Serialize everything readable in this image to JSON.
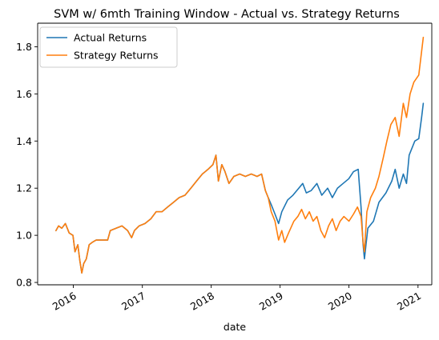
{
  "chart_data": {
    "type": "line",
    "title": "SVM w/ 6mth Training Window - Actual vs. Strategy Returns",
    "xlabel": "date",
    "ylabel": "",
    "xlim": [
      "2015-06-26",
      "2021-03-15"
    ],
    "ylim": [
      0.79,
      1.9
    ],
    "x_ticks": [
      {
        "date": "2016-01-01",
        "label": "2016"
      },
      {
        "date": "2017-01-01",
        "label": "2017"
      },
      {
        "date": "2018-01-01",
        "label": "2018"
      },
      {
        "date": "2019-01-01",
        "label": "2019"
      },
      {
        "date": "2020-01-01",
        "label": "2020"
      },
      {
        "date": "2021-01-01",
        "label": "2021"
      }
    ],
    "y_ticks": [
      {
        "value": 0.8,
        "label": "0.8"
      },
      {
        "value": 1.0,
        "label": "1.0"
      },
      {
        "value": 1.2,
        "label": "1.2"
      },
      {
        "value": 1.4,
        "label": "1.4"
      },
      {
        "value": 1.6,
        "label": "1.6"
      },
      {
        "value": 1.8,
        "label": "1.8"
      }
    ],
    "grid": false,
    "legend_position": "upper-left",
    "series": [
      {
        "name": "Actual Returns",
        "color": "#1f77b4",
        "points": [
          [
            "2015-10-01",
            1.02
          ],
          [
            "2015-10-15",
            1.04
          ],
          [
            "2015-11-01",
            1.03
          ],
          [
            "2015-11-20",
            1.05
          ],
          [
            "2015-12-10",
            1.01
          ],
          [
            "2015-12-30",
            1.0
          ],
          [
            "2016-01-10",
            0.93
          ],
          [
            "2016-01-25",
            0.96
          ],
          [
            "2016-02-05",
            0.89
          ],
          [
            "2016-02-15",
            0.84
          ],
          [
            "2016-02-25",
            0.88
          ],
          [
            "2016-03-10",
            0.9
          ],
          [
            "2016-03-25",
            0.96
          ],
          [
            "2016-04-10",
            0.97
          ],
          [
            "2016-05-01",
            0.98
          ],
          [
            "2016-06-01",
            0.98
          ],
          [
            "2016-07-01",
            0.98
          ],
          [
            "2016-07-15",
            1.02
          ],
          [
            "2016-08-15",
            1.03
          ],
          [
            "2016-09-15",
            1.04
          ],
          [
            "2016-10-15",
            1.02
          ],
          [
            "2016-11-05",
            0.99
          ],
          [
            "2016-11-20",
            1.02
          ],
          [
            "2016-12-15",
            1.04
          ],
          [
            "2017-01-15",
            1.05
          ],
          [
            "2017-02-15",
            1.07
          ],
          [
            "2017-03-15",
            1.1
          ],
          [
            "2017-04-15",
            1.1
          ],
          [
            "2017-05-15",
            1.12
          ],
          [
            "2017-06-15",
            1.14
          ],
          [
            "2017-07-15",
            1.16
          ],
          [
            "2017-08-15",
            1.17
          ],
          [
            "2017-09-15",
            1.2
          ],
          [
            "2017-10-15",
            1.23
          ],
          [
            "2017-11-15",
            1.26
          ],
          [
            "2017-12-15",
            1.28
          ],
          [
            "2018-01-10",
            1.3
          ],
          [
            "2018-01-26",
            1.34
          ],
          [
            "2018-02-08",
            1.23
          ],
          [
            "2018-02-26",
            1.3
          ],
          [
            "2018-03-15",
            1.27
          ],
          [
            "2018-04-05",
            1.22
          ],
          [
            "2018-05-01",
            1.25
          ],
          [
            "2018-06-01",
            1.26
          ],
          [
            "2018-07-01",
            1.25
          ],
          [
            "2018-08-01",
            1.26
          ],
          [
            "2018-09-01",
            1.25
          ],
          [
            "2018-09-25",
            1.26
          ],
          [
            "2018-10-15",
            1.19
          ],
          [
            "2018-10-30",
            1.16
          ],
          [
            "2018-11-15",
            1.13
          ],
          [
            "2018-12-05",
            1.09
          ],
          [
            "2018-12-24",
            1.05
          ],
          [
            "2019-01-10",
            1.1
          ],
          [
            "2019-02-10",
            1.15
          ],
          [
            "2019-03-10",
            1.17
          ],
          [
            "2019-04-10",
            1.2
          ],
          [
            "2019-05-01",
            1.22
          ],
          [
            "2019-05-20",
            1.18
          ],
          [
            "2019-06-15",
            1.19
          ],
          [
            "2019-07-15",
            1.22
          ],
          [
            "2019-08-10",
            1.17
          ],
          [
            "2019-09-10",
            1.2
          ],
          [
            "2019-10-05",
            1.16
          ],
          [
            "2019-11-01",
            1.2
          ],
          [
            "2019-12-01",
            1.22
          ],
          [
            "2019-12-31",
            1.24
          ],
          [
            "2020-01-25",
            1.27
          ],
          [
            "2020-02-19",
            1.28
          ],
          [
            "2020-03-05",
            1.12
          ],
          [
            "2020-03-16",
            0.96
          ],
          [
            "2020-03-23",
            0.9
          ],
          [
            "2020-04-10",
            1.03
          ],
          [
            "2020-05-10",
            1.06
          ],
          [
            "2020-06-08",
            1.14
          ],
          [
            "2020-07-15",
            1.18
          ],
          [
            "2020-08-15",
            1.23
          ],
          [
            "2020-09-02",
            1.28
          ],
          [
            "2020-09-23",
            1.2
          ],
          [
            "2020-10-15",
            1.26
          ],
          [
            "2020-11-01",
            1.22
          ],
          [
            "2020-11-15",
            1.34
          ],
          [
            "2020-12-15",
            1.4
          ],
          [
            "2021-01-05",
            1.41
          ],
          [
            "2021-01-20",
            1.5
          ],
          [
            "2021-01-29",
            1.56
          ]
        ]
      },
      {
        "name": "Strategy Returns",
        "color": "#ff7f0e",
        "points": [
          [
            "2015-10-01",
            1.02
          ],
          [
            "2015-10-15",
            1.04
          ],
          [
            "2015-11-01",
            1.03
          ],
          [
            "2015-11-20",
            1.05
          ],
          [
            "2015-12-10",
            1.01
          ],
          [
            "2015-12-30",
            1.0
          ],
          [
            "2016-01-10",
            0.93
          ],
          [
            "2016-01-25",
            0.96
          ],
          [
            "2016-02-05",
            0.89
          ],
          [
            "2016-02-15",
            0.84
          ],
          [
            "2016-02-25",
            0.88
          ],
          [
            "2016-03-10",
            0.9
          ],
          [
            "2016-03-25",
            0.96
          ],
          [
            "2016-04-10",
            0.97
          ],
          [
            "2016-05-01",
            0.98
          ],
          [
            "2016-06-01",
            0.98
          ],
          [
            "2016-07-01",
            0.98
          ],
          [
            "2016-07-15",
            1.02
          ],
          [
            "2016-08-15",
            1.03
          ],
          [
            "2016-09-15",
            1.04
          ],
          [
            "2016-10-15",
            1.02
          ],
          [
            "2016-11-05",
            0.99
          ],
          [
            "2016-11-20",
            1.02
          ],
          [
            "2016-12-15",
            1.04
          ],
          [
            "2017-01-15",
            1.05
          ],
          [
            "2017-02-15",
            1.07
          ],
          [
            "2017-03-15",
            1.1
          ],
          [
            "2017-04-15",
            1.1
          ],
          [
            "2017-05-15",
            1.12
          ],
          [
            "2017-06-15",
            1.14
          ],
          [
            "2017-07-15",
            1.16
          ],
          [
            "2017-08-15",
            1.17
          ],
          [
            "2017-09-15",
            1.2
          ],
          [
            "2017-10-15",
            1.23
          ],
          [
            "2017-11-15",
            1.26
          ],
          [
            "2017-12-15",
            1.28
          ],
          [
            "2018-01-10",
            1.3
          ],
          [
            "2018-01-26",
            1.34
          ],
          [
            "2018-02-08",
            1.23
          ],
          [
            "2018-02-26",
            1.3
          ],
          [
            "2018-03-15",
            1.27
          ],
          [
            "2018-04-05",
            1.22
          ],
          [
            "2018-05-01",
            1.25
          ],
          [
            "2018-06-01",
            1.26
          ],
          [
            "2018-07-01",
            1.25
          ],
          [
            "2018-08-01",
            1.26
          ],
          [
            "2018-09-01",
            1.25
          ],
          [
            "2018-09-25",
            1.26
          ],
          [
            "2018-10-15",
            1.19
          ],
          [
            "2018-10-30",
            1.16
          ],
          [
            "2018-11-15",
            1.1
          ],
          [
            "2018-12-05",
            1.06
          ],
          [
            "2018-12-24",
            0.98
          ],
          [
            "2019-01-10",
            1.02
          ],
          [
            "2019-01-25",
            0.97
          ],
          [
            "2019-02-15",
            1.01
          ],
          [
            "2019-03-15",
            1.06
          ],
          [
            "2019-04-05",
            1.08
          ],
          [
            "2019-04-25",
            1.11
          ],
          [
            "2019-05-15",
            1.07
          ],
          [
            "2019-06-05",
            1.1
          ],
          [
            "2019-06-25",
            1.06
          ],
          [
            "2019-07-15",
            1.08
          ],
          [
            "2019-08-05",
            1.02
          ],
          [
            "2019-08-25",
            0.99
          ],
          [
            "2019-09-15",
            1.04
          ],
          [
            "2019-10-05",
            1.07
          ],
          [
            "2019-10-25",
            1.02
          ],
          [
            "2019-11-15",
            1.06
          ],
          [
            "2019-12-05",
            1.08
          ],
          [
            "2020-01-01",
            1.06
          ],
          [
            "2020-01-25",
            1.09
          ],
          [
            "2020-02-15",
            1.12
          ],
          [
            "2020-03-05",
            1.08
          ],
          [
            "2020-03-16",
            0.97
          ],
          [
            "2020-03-23",
            0.93
          ],
          [
            "2020-04-05",
            1.1
          ],
          [
            "2020-04-25",
            1.16
          ],
          [
            "2020-05-20",
            1.2
          ],
          [
            "2020-06-08",
            1.25
          ],
          [
            "2020-07-01",
            1.33
          ],
          [
            "2020-07-20",
            1.4
          ],
          [
            "2020-08-10",
            1.47
          ],
          [
            "2020-09-02",
            1.5
          ],
          [
            "2020-09-23",
            1.42
          ],
          [
            "2020-10-15",
            1.56
          ],
          [
            "2020-11-01",
            1.5
          ],
          [
            "2020-11-20",
            1.6
          ],
          [
            "2020-12-10",
            1.65
          ],
          [
            "2021-01-05",
            1.68
          ],
          [
            "2021-01-20",
            1.78
          ],
          [
            "2021-01-29",
            1.84
          ]
        ]
      }
    ]
  }
}
